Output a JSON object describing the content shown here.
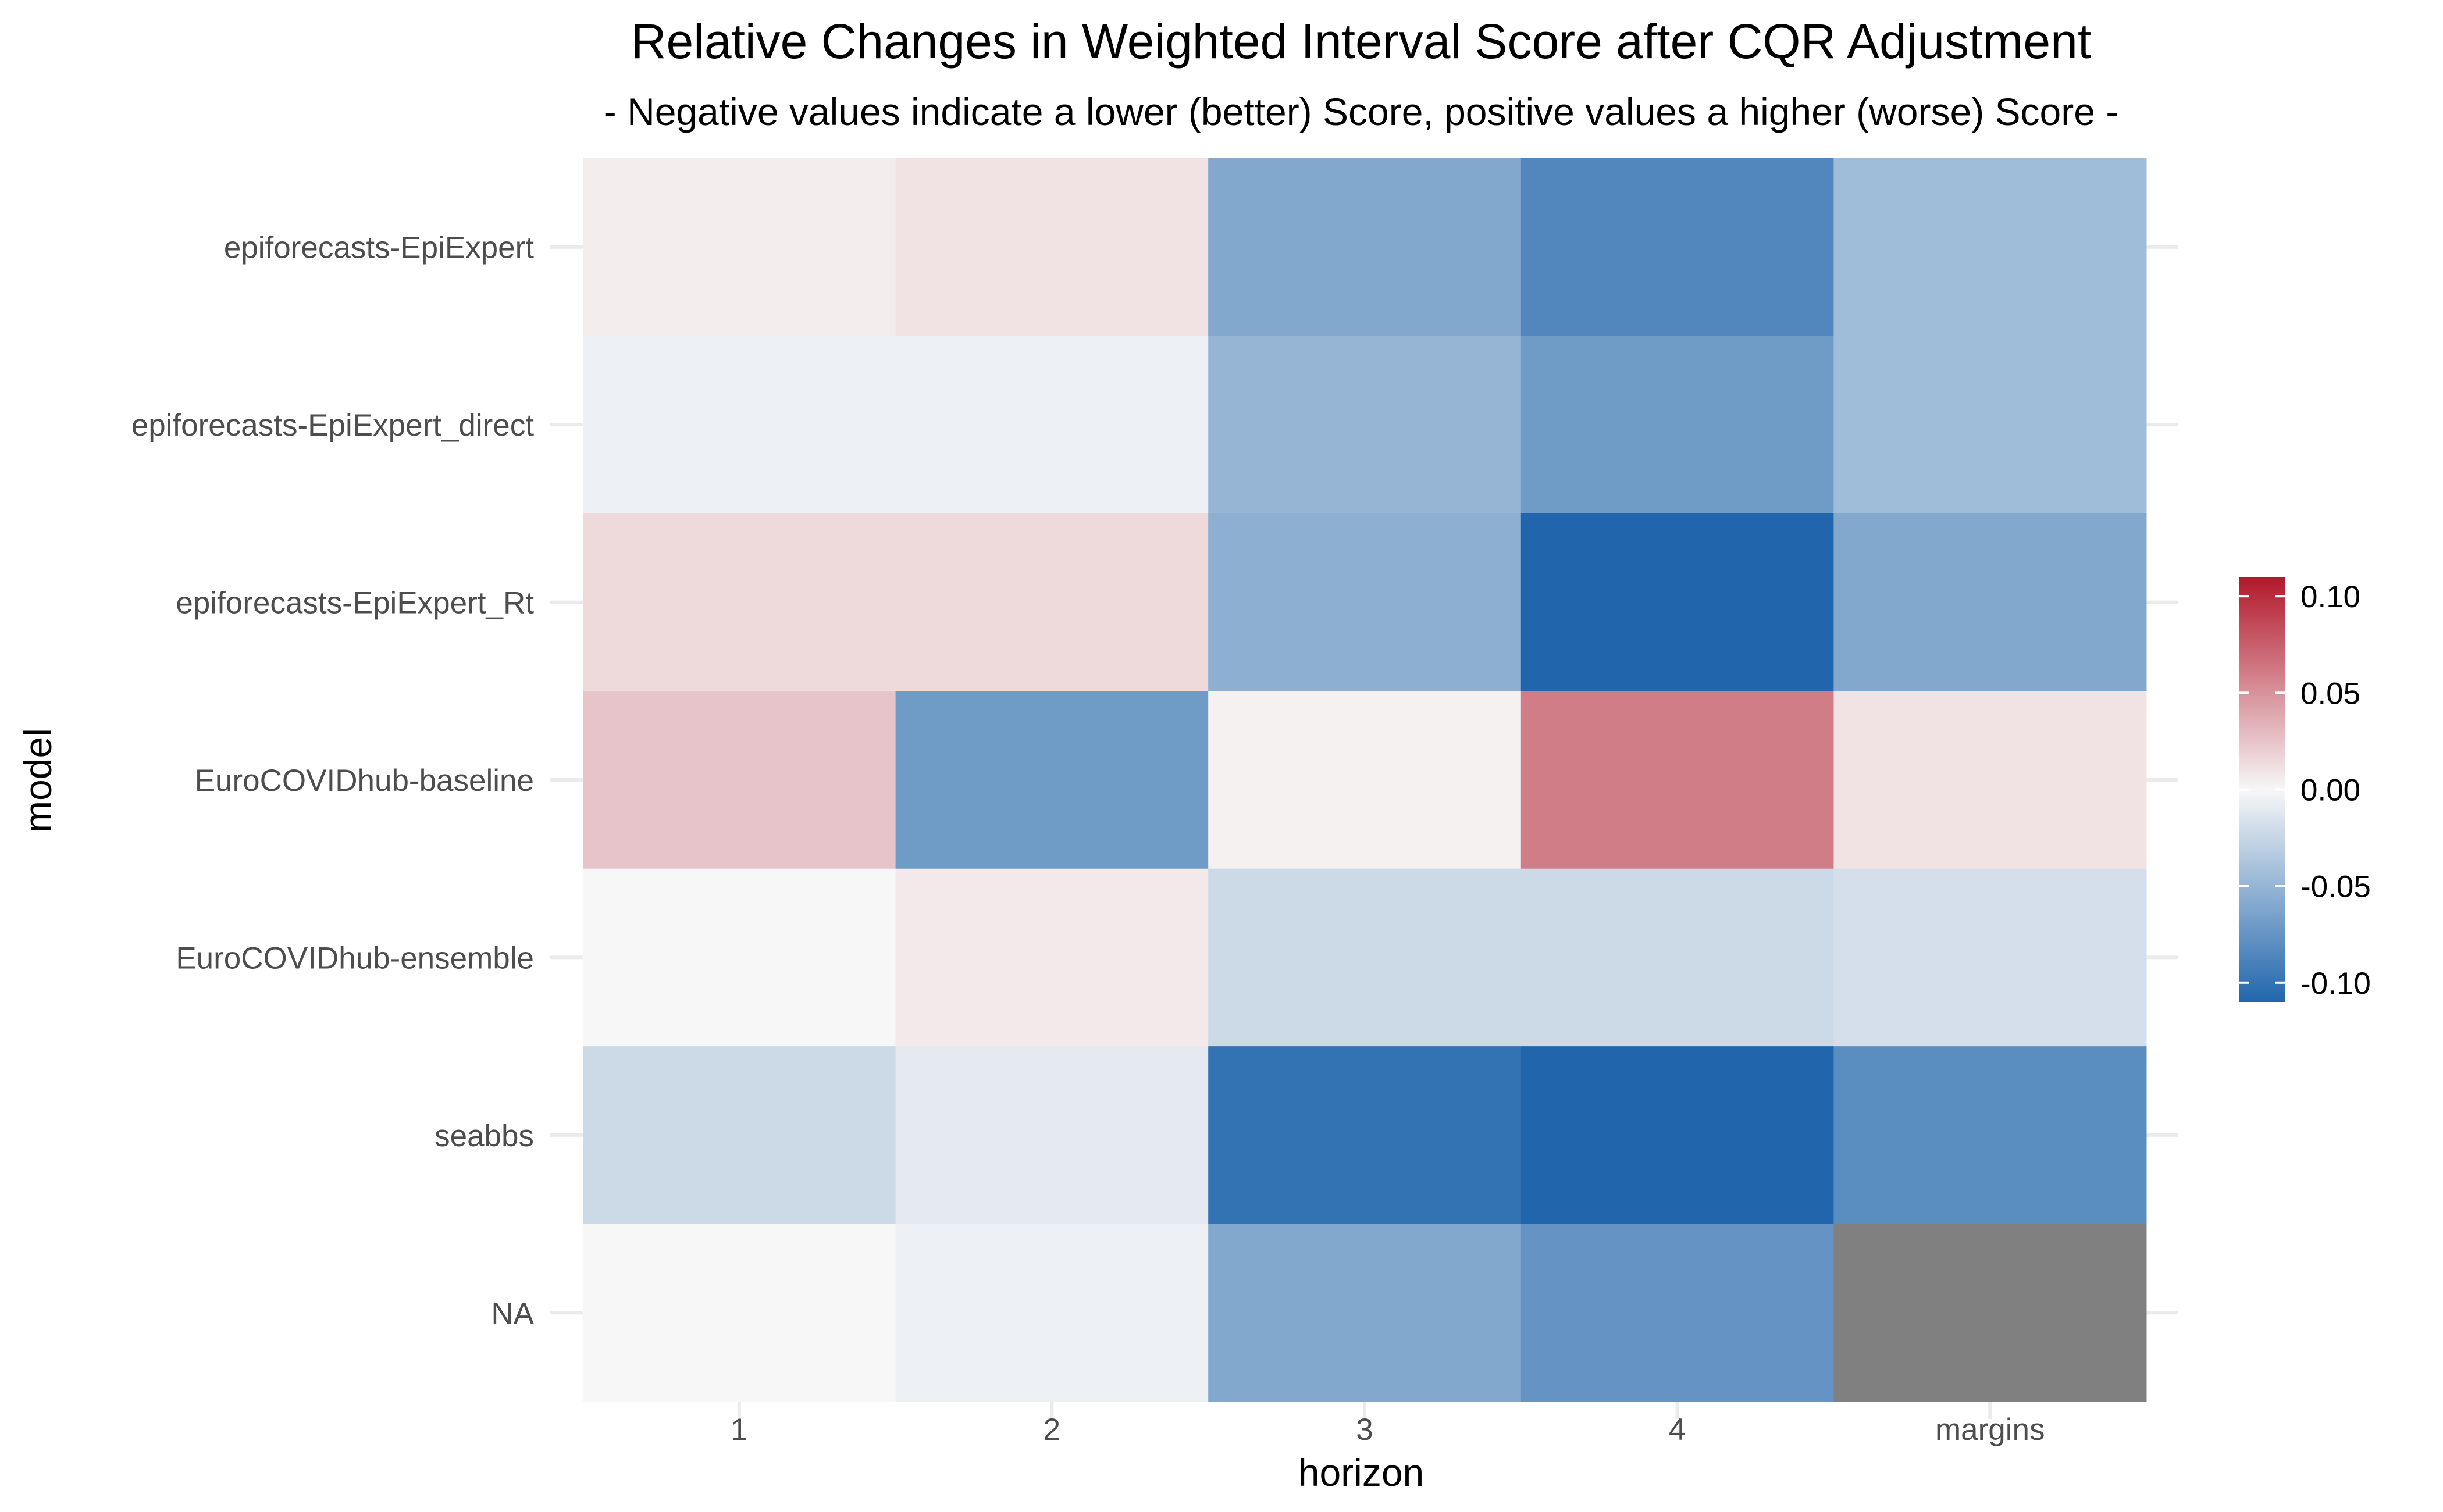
{
  "chart_data": {
    "type": "heatmap",
    "title": "Relative Changes in Weighted Interval Score after CQR Adjustment",
    "subtitle": "- Negative values indicate a lower (better) Score, positive values a higher (worse) Score -",
    "xlabel": "horizon",
    "ylabel": "model",
    "x_categories": [
      "1",
      "2",
      "3",
      "4",
      "margins"
    ],
    "y_categories": [
      "epiforecasts-EpiExpert",
      "epiforecasts-EpiExpert_direct",
      "epiforecasts-EpiExpert_Rt",
      "EuroCOVIDhub-baseline",
      "EuroCOVIDhub-ensemble",
      "seabbs",
      "NA"
    ],
    "values": [
      [
        0.005,
        0.01,
        -0.06,
        -0.085,
        -0.045
      ],
      [
        -0.005,
        -0.005,
        -0.05,
        -0.07,
        -0.045
      ],
      [
        0.015,
        0.015,
        -0.055,
        -0.11,
        -0.06
      ],
      [
        0.025,
        -0.07,
        0.003,
        0.06,
        0.01
      ],
      [
        0.0,
        0.007,
        -0.022,
        -0.022,
        -0.018
      ],
      [
        -0.022,
        -0.01,
        -0.1,
        -0.11,
        -0.08
      ],
      [
        0.0,
        -0.005,
        -0.06,
        -0.075,
        null
      ]
    ],
    "na_color": "#808080",
    "scale": {
      "type": "diverging",
      "limits": [
        -0.11,
        0.11
      ],
      "low_color": "#2166AC",
      "mid_color": "#F7F7F7",
      "high_color": "#B2182B",
      "breaks": [
        0.1,
        0.05,
        0.0,
        -0.05,
        -0.1
      ],
      "break_labels": [
        "0.10",
        "0.05",
        "0.00",
        "-0.05",
        "-0.10"
      ]
    },
    "legend_position": "right",
    "grid": true
  }
}
